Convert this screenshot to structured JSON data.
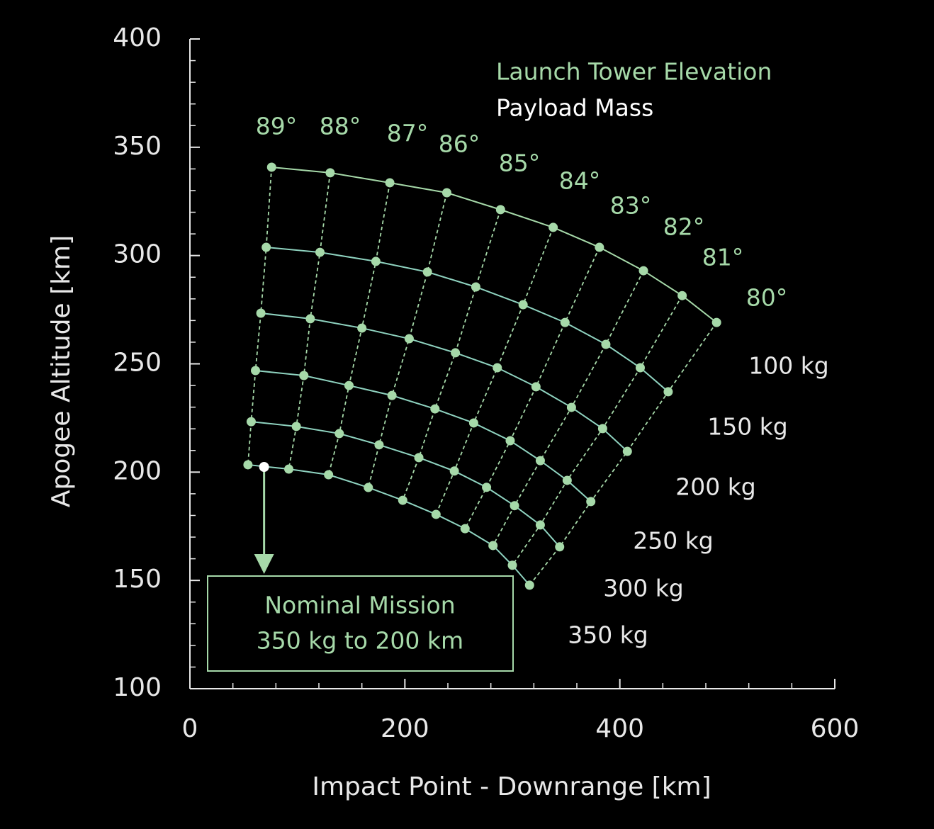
{
  "chart_data": {
    "type": "line",
    "xlabel": "Impact Point - Downrange [km]",
    "ylabel": "Apogee Altitude [km]",
    "xlim": [
      0,
      600
    ],
    "xticks": [
      0,
      200,
      400,
      600
    ],
    "xminorticks": [
      40,
      80,
      120,
      160,
      240,
      280,
      320,
      360,
      440,
      480,
      520,
      560
    ],
    "ylim": [
      100,
      400
    ],
    "yticks": [
      100,
      150,
      200,
      250,
      300,
      350,
      400
    ],
    "yminorticks": [
      110,
      120,
      130,
      140,
      160,
      170,
      180,
      190,
      210,
      220,
      230,
      240,
      260,
      270,
      280,
      290,
      310,
      320,
      330,
      340,
      360,
      370,
      380,
      390
    ],
    "legend": [
      {
        "text": "Launch Tower Elevation",
        "color": "#a6d9a9"
      },
      {
        "text": "Payload Mass",
        "color": "#ffffff"
      }
    ],
    "elevations": [
      "89°",
      "88°",
      "87°",
      "86°",
      "85°",
      "84°",
      "83°",
      "82°",
      "81°",
      "80°"
    ],
    "elevation_color": "#a6d9a9",
    "series": [
      {
        "name": "100 kg",
        "color": "#a6d9a9",
        "x": [
          76,
          130.5,
          186,
          239,
          289,
          338,
          381,
          422,
          458,
          490
        ],
        "values": [
          340.8,
          338.2,
          333.6,
          329,
          321.2,
          313,
          303.8,
          293,
          281.5,
          269.1
        ]
      },
      {
        "name": "150 kg",
        "color": "#8fd3c0",
        "x": [
          71,
          121,
          173,
          221,
          266,
          310,
          349,
          387,
          419,
          445
        ],
        "values": [
          303.8,
          301.5,
          297.3,
          292.4,
          285.5,
          277.3,
          269.1,
          259,
          248.2,
          237.1
        ]
      },
      {
        "name": "200 kg",
        "color": "#8fd3c0",
        "x": [
          66,
          112,
          160,
          204,
          247,
          286,
          322,
          355,
          384,
          407
        ],
        "values": [
          273.4,
          270.8,
          266.5,
          261.6,
          255.1,
          248.2,
          239.4,
          229.9,
          220.1,
          209.6
        ]
      },
      {
        "name": "250 kg",
        "color": "#8fd3c0",
        "x": [
          61,
          106,
          148,
          188,
          228,
          264,
          298,
          326,
          351,
          373
        ],
        "values": [
          246.9,
          244.6,
          240,
          235.4,
          229.2,
          222.7,
          214.5,
          205.3,
          196.2,
          186.4
        ]
      },
      {
        "name": "300 kg",
        "color": "#8fd3c0",
        "x": [
          57,
          99,
          139,
          176,
          213,
          246,
          276,
          302,
          326,
          344
        ],
        "values": [
          223.3,
          221.1,
          217.8,
          212.6,
          206.7,
          200.5,
          193,
          184.5,
          175.6,
          165.5
        ]
      },
      {
        "name": "350 kg",
        "color": "#8fd3c0",
        "x": [
          54,
          92,
          129,
          166,
          198,
          229,
          256,
          282,
          300,
          316
        ],
        "values": [
          203.4,
          201.4,
          198.8,
          192.9,
          187,
          180.5,
          173.9,
          166.1,
          157,
          147.8
        ]
      }
    ],
    "annotation": {
      "lines": [
        "Nominal Mission",
        "350 kg to 200 km"
      ],
      "x": 69,
      "y": 202.4,
      "color": "#a6d9a9"
    }
  }
}
